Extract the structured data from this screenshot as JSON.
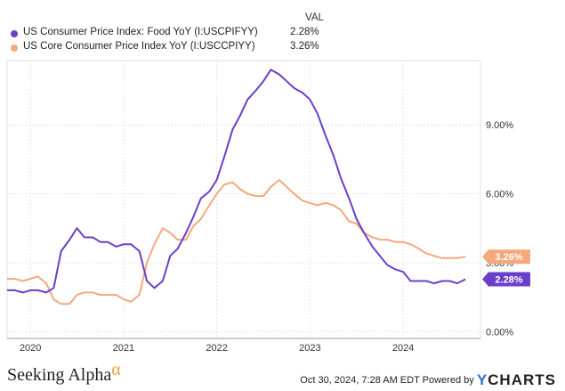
{
  "legend": {
    "val_header": "VAL",
    "items": [
      {
        "name": "US Consumer Price Index: Food YoY (I:USCPIFYY)",
        "value": "2.28%",
        "color": "#6b3fc8"
      },
      {
        "name": "US Core Consumer Price Index YoY (I:USCCPIYY)",
        "value": "3.26%",
        "color": "#f5a87c"
      }
    ]
  },
  "footer": {
    "brand_left": "Seeking Alpha",
    "brand_left_symbol": "α",
    "timestamp": "Oct 30, 2024, 7:28 AM EDT Powered by",
    "brand_right_prefix": "Y",
    "brand_right": "CHARTS"
  },
  "chart_data": {
    "type": "line",
    "x_start": 2019.75,
    "x_end": 2024.83,
    "ylim": [
      -0.3,
      11.8
    ],
    "xticks": [
      {
        "value": 2020,
        "label": "2020"
      },
      {
        "value": 2021,
        "label": "2021"
      },
      {
        "value": 2022,
        "label": "2022"
      },
      {
        "value": 2023,
        "label": "2023"
      },
      {
        "value": 2024,
        "label": "2024"
      }
    ],
    "yticks": [
      {
        "value": 0,
        "label": "0.00%"
      },
      {
        "value": 3,
        "label": "3.00%"
      },
      {
        "value": 6,
        "label": "6.00%"
      },
      {
        "value": 9,
        "label": "9.00%"
      }
    ],
    "series": [
      {
        "name": "US Consumer Price Index: Food YoY (I:USCPIFYY)",
        "color": "#6b3fc8",
        "end_label": "2.28%",
        "points": [
          [
            2019.75,
            1.8
          ],
          [
            2019.83,
            1.8
          ],
          [
            2019.92,
            1.7
          ],
          [
            2020.0,
            1.8
          ],
          [
            2020.08,
            1.8
          ],
          [
            2020.17,
            1.7
          ],
          [
            2020.25,
            1.9
          ],
          [
            2020.33,
            3.5
          ],
          [
            2020.42,
            4.0
          ],
          [
            2020.5,
            4.5
          ],
          [
            2020.58,
            4.1
          ],
          [
            2020.67,
            4.1
          ],
          [
            2020.75,
            3.9
          ],
          [
            2020.83,
            3.9
          ],
          [
            2020.92,
            3.7
          ],
          [
            2021.0,
            3.8
          ],
          [
            2021.08,
            3.8
          ],
          [
            2021.17,
            3.5
          ],
          [
            2021.25,
            2.2
          ],
          [
            2021.33,
            1.9
          ],
          [
            2021.42,
            2.2
          ],
          [
            2021.5,
            3.3
          ],
          [
            2021.58,
            3.6
          ],
          [
            2021.67,
            4.3
          ],
          [
            2021.75,
            5.0
          ],
          [
            2021.83,
            5.8
          ],
          [
            2021.92,
            6.1
          ],
          [
            2022.0,
            6.6
          ],
          [
            2022.08,
            7.6
          ],
          [
            2022.17,
            8.8
          ],
          [
            2022.25,
            9.4
          ],
          [
            2022.33,
            10.1
          ],
          [
            2022.42,
            10.5
          ],
          [
            2022.5,
            10.9
          ],
          [
            2022.58,
            11.4
          ],
          [
            2022.67,
            11.2
          ],
          [
            2022.75,
            10.9
          ],
          [
            2022.83,
            10.6
          ],
          [
            2022.92,
            10.4
          ],
          [
            2023.0,
            10.1
          ],
          [
            2023.08,
            9.5
          ],
          [
            2023.17,
            8.5
          ],
          [
            2023.25,
            7.7
          ],
          [
            2023.33,
            6.7
          ],
          [
            2023.42,
            5.8
          ],
          [
            2023.5,
            4.9
          ],
          [
            2023.58,
            4.3
          ],
          [
            2023.67,
            3.7
          ],
          [
            2023.75,
            3.3
          ],
          [
            2023.83,
            2.9
          ],
          [
            2023.92,
            2.7
          ],
          [
            2024.0,
            2.6
          ],
          [
            2024.08,
            2.2
          ],
          [
            2024.17,
            2.2
          ],
          [
            2024.25,
            2.2
          ],
          [
            2024.33,
            2.1
          ],
          [
            2024.42,
            2.2
          ],
          [
            2024.5,
            2.2
          ],
          [
            2024.58,
            2.1
          ],
          [
            2024.67,
            2.28
          ]
        ]
      },
      {
        "name": "US Core Consumer Price Index YoY (I:USCCPIYY)",
        "color": "#f5a87c",
        "end_label": "3.26%",
        "points": [
          [
            2019.75,
            2.3
          ],
          [
            2019.83,
            2.3
          ],
          [
            2019.92,
            2.2
          ],
          [
            2020.0,
            2.3
          ],
          [
            2020.08,
            2.4
          ],
          [
            2020.17,
            2.1
          ],
          [
            2020.25,
            1.4
          ],
          [
            2020.33,
            1.2
          ],
          [
            2020.42,
            1.2
          ],
          [
            2020.5,
            1.6
          ],
          [
            2020.58,
            1.7
          ],
          [
            2020.67,
            1.7
          ],
          [
            2020.75,
            1.6
          ],
          [
            2020.83,
            1.6
          ],
          [
            2020.92,
            1.6
          ],
          [
            2021.0,
            1.4
          ],
          [
            2021.08,
            1.3
          ],
          [
            2021.17,
            1.6
          ],
          [
            2021.25,
            3.0
          ],
          [
            2021.33,
            3.8
          ],
          [
            2021.42,
            4.5
          ],
          [
            2021.5,
            4.3
          ],
          [
            2021.58,
            4.0
          ],
          [
            2021.67,
            4.0
          ],
          [
            2021.75,
            4.6
          ],
          [
            2021.83,
            4.9
          ],
          [
            2021.92,
            5.5
          ],
          [
            2022.0,
            6.0
          ],
          [
            2022.08,
            6.4
          ],
          [
            2022.17,
            6.5
          ],
          [
            2022.25,
            6.2
          ],
          [
            2022.33,
            6.0
          ],
          [
            2022.42,
            5.9
          ],
          [
            2022.5,
            5.9
          ],
          [
            2022.58,
            6.3
          ],
          [
            2022.67,
            6.6
          ],
          [
            2022.75,
            6.3
          ],
          [
            2022.83,
            6.0
          ],
          [
            2022.92,
            5.7
          ],
          [
            2023.0,
            5.6
          ],
          [
            2023.08,
            5.5
          ],
          [
            2023.17,
            5.6
          ],
          [
            2023.25,
            5.5
          ],
          [
            2023.33,
            5.3
          ],
          [
            2023.42,
            4.8
          ],
          [
            2023.5,
            4.7
          ],
          [
            2023.58,
            4.3
          ],
          [
            2023.67,
            4.1
          ],
          [
            2023.75,
            4.0
          ],
          [
            2023.83,
            4.0
          ],
          [
            2023.92,
            3.9
          ],
          [
            2024.0,
            3.9
          ],
          [
            2024.08,
            3.8
          ],
          [
            2024.17,
            3.6
          ],
          [
            2024.25,
            3.4
          ],
          [
            2024.33,
            3.3
          ],
          [
            2024.42,
            3.2
          ],
          [
            2024.5,
            3.2
          ],
          [
            2024.58,
            3.2
          ],
          [
            2024.67,
            3.26
          ]
        ]
      }
    ]
  }
}
